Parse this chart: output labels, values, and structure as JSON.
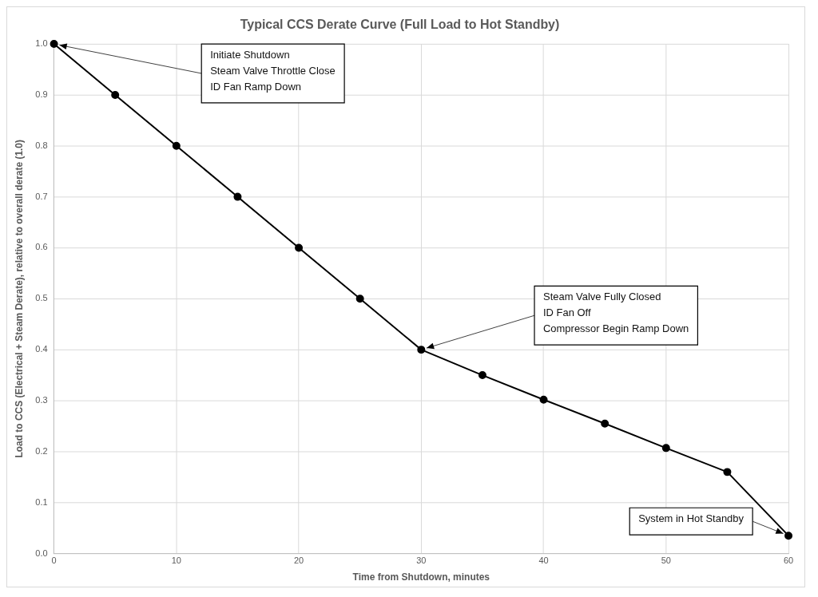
{
  "chart_data": {
    "type": "line",
    "title": "Typical CCS Derate Curve (Full Load to Hot Standby)",
    "xlabel": "Time from Shutdown, minutes",
    "ylabel": "Load to CCS (Electrical + Steam Derate), relative to overall derate (1.0)",
    "x": [
      0,
      5,
      10,
      15,
      20,
      25,
      30,
      35,
      40,
      45,
      50,
      55,
      60
    ],
    "series": [
      {
        "color": "#000000",
        "values": [
          1.0,
          0.9,
          0.8,
          0.7,
          0.6,
          0.5,
          0.4,
          0.35,
          0.302,
          0.255,
          0.207,
          0.16,
          0.035
        ]
      }
    ],
    "xlim": [
      0,
      60
    ],
    "xticks": [
      0,
      10,
      20,
      30,
      40,
      50,
      60
    ],
    "ylim": [
      0,
      1
    ],
    "yticks": [
      {
        "value": 0,
        "label": "0.0"
      },
      0.1,
      0.2,
      0.3,
      0.4,
      0.5,
      0.6,
      0.7,
      0.8,
      0.9,
      {
        "value": 1,
        "label": "1.0"
      }
    ],
    "grid": true,
    "legend": false,
    "marker": "circle",
    "line_style": "solid",
    "annotations": [
      {
        "text": "Initiate Shutdown\nSteam Valve Throttle Close\nID Fan Ramp Down",
        "x": 0,
        "y": 1.0
      },
      {
        "text": "Steam Valve Fully Closed\nID Fan Off\nCompressor Begin Ramp Down",
        "x": 30,
        "y": 0.4
      },
      {
        "text": "System in Hot Standby",
        "x": 60,
        "y": 0.035
      }
    ]
  }
}
